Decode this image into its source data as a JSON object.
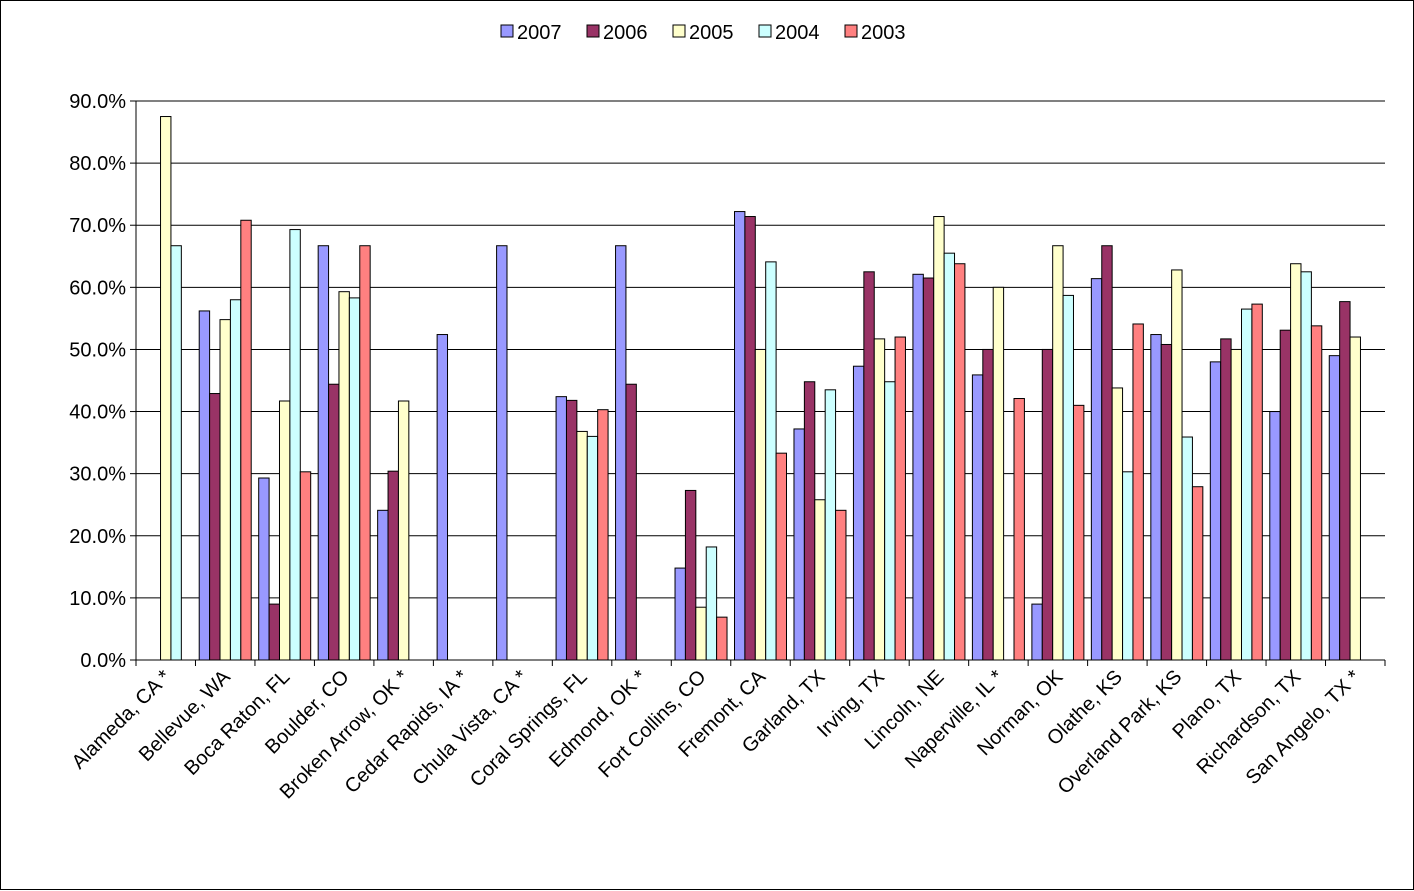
{
  "chart_data": {
    "type": "bar",
    "title": "",
    "xlabel": "",
    "ylabel": "",
    "ylim": [
      0,
      0.9
    ],
    "y_ticks": [
      "0.0%",
      "10.0%",
      "20.0%",
      "30.0%",
      "40.0%",
      "50.0%",
      "60.0%",
      "70.0%",
      "80.0%",
      "90.0%"
    ],
    "grid": "horizontal",
    "legend_position": "top",
    "categories": [
      "Alameda, CA *",
      "Bellevue, WA",
      "Boca Raton, FL",
      "Boulder, CO",
      "Broken Arrow, OK *",
      "Cedar Rapids, IA *",
      "Chula Vista, CA *",
      "Coral Springs, FL",
      "Edmond, OK *",
      "Fort Collins, CO",
      "Fremont, CA",
      "Garland, TX",
      "Irving, TX",
      "Lincoln, NE",
      "Naperville, IL *",
      "Norman, OK",
      "Olathe, KS",
      "Overland Park, KS",
      "Plano, TX",
      "Richardson, TX",
      "San Angelo, TX *"
    ],
    "series": [
      {
        "name": "2007",
        "color": "#9999FF",
        "values": [
          null,
          0.562,
          0.293,
          0.667,
          0.241,
          0.524,
          0.667,
          0.424,
          0.667,
          0.148,
          0.722,
          0.372,
          0.473,
          0.621,
          0.459,
          0.09,
          0.614,
          0.524,
          0.48,
          0.4,
          0.49
        ]
      },
      {
        "name": "2006",
        "color": "#993366",
        "values": [
          null,
          0.429,
          0.09,
          0.444,
          0.304,
          null,
          null,
          0.418,
          0.444,
          0.273,
          0.714,
          0.448,
          0.625,
          0.615,
          0.5,
          0.5,
          0.667,
          0.508,
          0.517,
          0.531,
          0.577
        ]
      },
      {
        "name": "2005",
        "color": "#FFFFCC",
        "values": [
          0.875,
          0.548,
          0.417,
          0.593,
          0.417,
          null,
          null,
          0.368,
          null,
          0.085,
          0.5,
          0.258,
          0.517,
          0.714,
          0.6,
          0.667,
          0.438,
          0.628,
          0.5,
          0.638,
          0.52
        ]
      },
      {
        "name": "2004",
        "color": "#CCFFFF",
        "values": [
          0.667,
          0.58,
          0.693,
          0.583,
          null,
          null,
          null,
          0.36,
          null,
          0.182,
          0.641,
          0.435,
          0.448,
          0.655,
          null,
          0.587,
          0.303,
          0.359,
          0.565,
          0.625,
          null
        ]
      },
      {
        "name": "2003",
        "color": "#FF8080",
        "values": [
          null,
          0.708,
          0.303,
          0.667,
          null,
          null,
          null,
          0.403,
          null,
          0.069,
          0.333,
          0.241,
          0.52,
          0.638,
          0.421,
          0.41,
          0.541,
          0.279,
          0.573,
          0.538,
          null
        ]
      }
    ]
  }
}
